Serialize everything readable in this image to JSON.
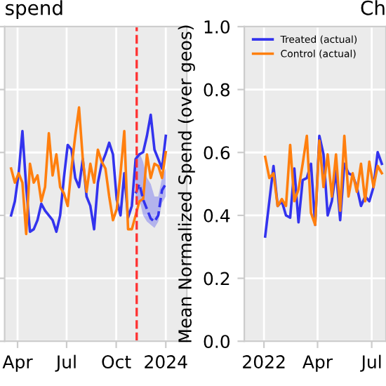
{
  "chart_data": [
    {
      "type": "line",
      "title": "spend",
      "xlim": [
        "2023-03-08",
        "2024-02-09"
      ],
      "xticks": [
        {
          "value": "2023-04-01",
          "label": "Apr"
        },
        {
          "value": "2023-07-01",
          "label": "Jul"
        },
        {
          "value": "2023-10-01",
          "label": "Oct"
        },
        {
          "value": "2024-01-01",
          "label": "2024"
        }
      ],
      "ylim": [
        0,
        1
      ],
      "yticks": [
        0,
        0.2,
        0.4,
        0.6,
        0.8,
        1.0
      ],
      "tick_labels": "x",
      "grid": true,
      "legend": false,
      "x": [
        "2023-03-20",
        "2023-03-27",
        "2023-04-03",
        "2023-04-10",
        "2023-04-17",
        "2023-04-24",
        "2023-05-01",
        "2023-05-08",
        "2023-05-15",
        "2023-05-22",
        "2023-05-29",
        "2023-06-05",
        "2023-06-12",
        "2023-06-19",
        "2023-06-26",
        "2023-07-03",
        "2023-07-10",
        "2023-07-17",
        "2023-07-24",
        "2023-07-31",
        "2023-08-07",
        "2023-08-14",
        "2023-08-21",
        "2023-08-28",
        "2023-09-04",
        "2023-09-11",
        "2023-09-18",
        "2023-09-25",
        "2023-10-02",
        "2023-10-09",
        "2023-10-16",
        "2023-10-23",
        "2023-10-30",
        "2023-11-06",
        "2023-11-13",
        "2023-11-20",
        "2023-11-27",
        "2023-12-04",
        "2023-12-11",
        "2023-12-18",
        "2023-12-25",
        "2024-01-01"
      ],
      "ref_lines": [
        {
          "axis": "x",
          "value": "2023-11-08",
          "label": null,
          "color": "#ff3333",
          "line_style": "dashed"
        }
      ],
      "series": [
        {
          "color": "#3333ee",
          "line_style": "solid",
          "values": [
            0.4,
            0.445,
            0.534,
            0.668,
            0.49,
            0.348,
            0.356,
            0.385,
            0.437,
            0.415,
            0.4,
            0.385,
            0.348,
            0.4,
            0.52,
            0.624,
            0.609,
            0.519,
            0.49,
            0.579,
            0.46,
            0.43,
            0.356,
            0.504,
            0.564,
            0.594,
            0.631,
            0.594,
            0.45,
            0.4,
            0.534,
            0.393,
            0.43,
            0.579,
            0.594,
            0.601,
            0.653,
            0.72,
            0.609,
            0.579,
            0.549,
            0.653
          ]
        },
        {
          "color": "#ff7f0e",
          "line_style": "solid",
          "values": [
            0.549,
            0.504,
            0.534,
            0.504,
            0.341,
            0.564,
            0.504,
            0.527,
            0.445,
            0.49,
            0.661,
            0.527,
            0.594,
            0.49,
            0.47,
            0.43,
            0.549,
            0.653,
            0.743,
            0.579,
            0.475,
            0.564,
            0.504,
            0.609,
            0.571,
            0.549,
            0.46,
            0.385,
            0.42,
            0.534,
            0.668,
            0.356,
            0.356,
            0.4,
            0.445,
            0.452,
            0.594,
            0.519,
            0.564,
            0.557,
            0.519,
            0.601
          ]
        },
        {
          "color": "#3333ee",
          "line_style": "dashed",
          "x": [
            "2023-11-06",
            "2023-11-13",
            "2023-11-20",
            "2023-11-27",
            "2023-12-04",
            "2023-12-11",
            "2023-12-18",
            "2023-12-25",
            "2024-01-01"
          ],
          "values": [
            0.47,
            0.5,
            0.45,
            0.42,
            0.39,
            0.38,
            0.4,
            0.48,
            0.5
          ],
          "lower": [
            0.44,
            0.45,
            0.4,
            0.38,
            0.37,
            0.36,
            0.38,
            0.44,
            0.46
          ],
          "upper": [
            0.59,
            0.6,
            0.57,
            0.52,
            0.5,
            0.46,
            0.46,
            0.52,
            0.55
          ]
        }
      ]
    },
    {
      "type": "line",
      "title": "Ch",
      "ylabel": "Mean Normalized Spend (over geos)",
      "xlim": [
        "2021-11-29",
        "2022-07-25"
      ],
      "xticks": [
        {
          "value": "2022-01-01",
          "label": "2022"
        },
        {
          "value": "2022-04-01",
          "label": "Apr"
        },
        {
          "value": "2022-07-01",
          "label": "Jul"
        }
      ],
      "ylim": [
        0,
        1
      ],
      "yticks": [
        {
          "value": 0,
          "label": "0.0"
        },
        0.2,
        0.4,
        0.6,
        0.8,
        {
          "value": 1,
          "label": "1.0"
        }
      ],
      "grid": true,
      "legend": "top left",
      "x": [
        "2022-01-03",
        "2022-01-10",
        "2022-01-17",
        "2022-01-24",
        "2022-01-31",
        "2022-02-07",
        "2022-02-14",
        "2022-02-21",
        "2022-02-28",
        "2022-03-07",
        "2022-03-14",
        "2022-03-21",
        "2022-03-28",
        "2022-04-04",
        "2022-04-11",
        "2022-04-18",
        "2022-04-25",
        "2022-05-02",
        "2022-05-09",
        "2022-05-16",
        "2022-05-23",
        "2022-05-30",
        "2022-06-06",
        "2022-06-13",
        "2022-06-20",
        "2022-06-27",
        "2022-07-04",
        "2022-07-11",
        "2022-07-18"
      ],
      "series": [
        {
          "name": "Treated (actual)",
          "color": "#3333ee",
          "line_style": "solid",
          "values": [
            0.333,
            0.445,
            0.557,
            0.43,
            0.445,
            0.4,
            0.393,
            0.549,
            0.378,
            0.512,
            0.519,
            0.564,
            0.37,
            0.653,
            0.594,
            0.4,
            0.445,
            0.542,
            0.385,
            0.564,
            0.534,
            0.527,
            0.49,
            0.43,
            0.46,
            0.445,
            0.49,
            0.601,
            0.564
          ]
        },
        {
          "name": "Control (actual)",
          "color": "#ff7f0e",
          "line_style": "solid",
          "values": [
            0.586,
            0.519,
            0.534,
            0.43,
            0.452,
            0.43,
            0.624,
            0.445,
            0.482,
            0.564,
            0.653,
            0.408,
            0.37,
            0.638,
            0.49,
            0.594,
            0.46,
            0.594,
            0.415,
            0.653,
            0.46,
            0.534,
            0.475,
            0.564,
            0.445,
            0.571,
            0.49,
            0.557,
            0.534
          ]
        }
      ]
    }
  ]
}
